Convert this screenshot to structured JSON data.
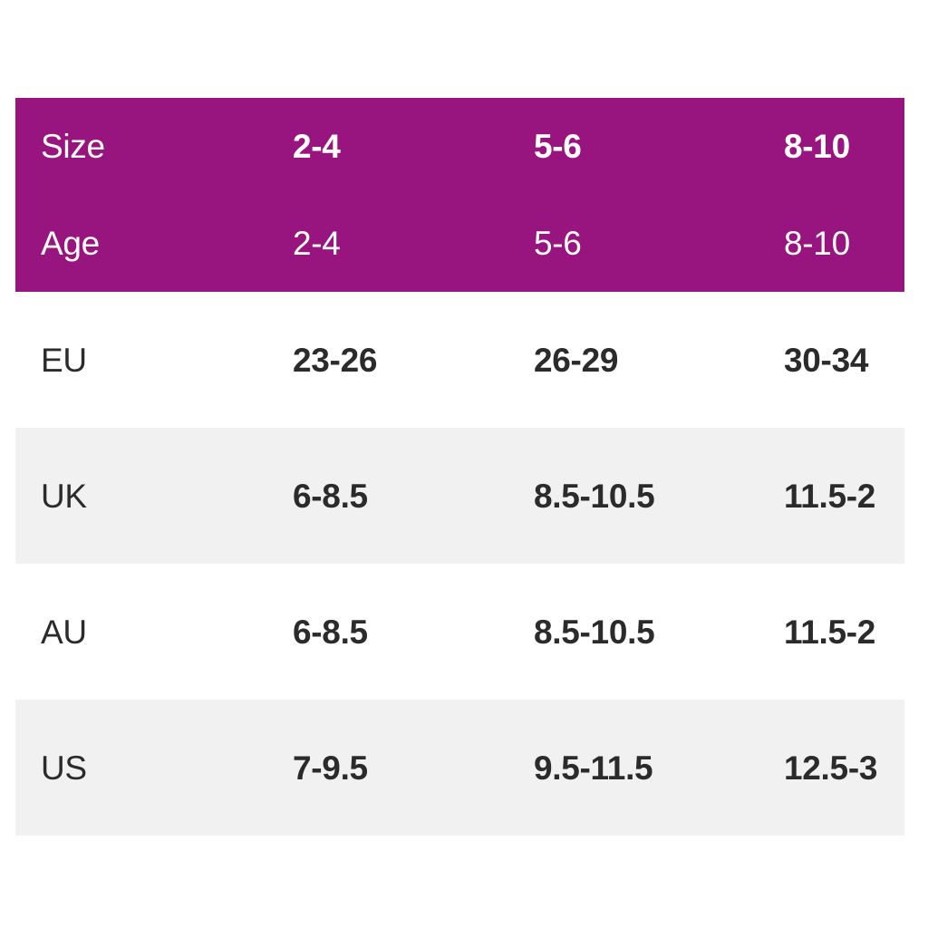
{
  "colors": {
    "header_bg": "#981580",
    "header_text": "#FFFFFF",
    "stripe_bg": "#F1F1F1",
    "row_bg": "#FFFFFF",
    "value_text": "#2B2B2B"
  },
  "chart_data": {
    "type": "table",
    "columns": [
      "Size",
      "2-4",
      "5-6",
      "8-10"
    ],
    "rows": [
      {
        "label": "Age",
        "values": [
          "2-4",
          "5-6",
          "8-10"
        ]
      },
      {
        "label": "EU",
        "values": [
          "23-26",
          "26-29",
          "30-34"
        ]
      },
      {
        "label": "UK",
        "values": [
          "6-8.5",
          "8.5-10.5",
          "11.5-2"
        ]
      },
      {
        "label": "AU",
        "values": [
          "6-8.5",
          "8.5-10.5",
          "11.5-2"
        ]
      },
      {
        "label": "US",
        "values": [
          "7-9.5",
          "9.5-11.5",
          "12.5-3"
        ]
      }
    ],
    "layout": {
      "header_rows": [
        "Size",
        "Age"
      ],
      "striped_rows": [
        "UK",
        "US"
      ],
      "value_alignment": "left",
      "grid_lines": "none",
      "legend": "none"
    }
  }
}
